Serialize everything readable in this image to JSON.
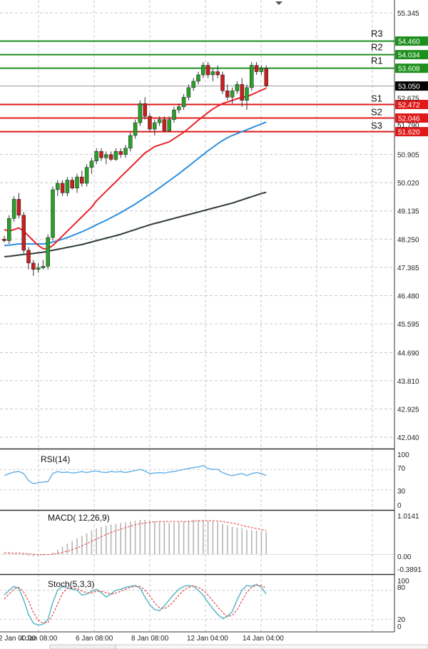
{
  "colors": {
    "resistance": "#1c8f1c",
    "support": "#e01a1a",
    "bull": "#2aa02a",
    "bear": "#c81e1e",
    "ma_fast": "#e8242a",
    "ma_mid": "#2b8fe0",
    "ma_slow": "#2f3b35",
    "rsi": "#6cb4e8",
    "macd_signal": "#e85a5a",
    "stoch_k": "#58b7c7",
    "stoch_d": "#e04848",
    "grid": "#c9c9c9",
    "price_tag": "#000000"
  },
  "chart_data": [
    {
      "type": "candlestick",
      "title": "",
      "yticks": [
        "55.345",
        "54.460",
        "54.034",
        "53.608",
        "53.050",
        "52.675",
        "52.472",
        "52.046",
        "51.790",
        "51.620",
        "50.905",
        "50.020",
        "49.135",
        "48.250",
        "47.365",
        "46.480",
        "45.595",
        "44.690",
        "43.810",
        "42.925",
        "42.040"
      ],
      "ylim": [
        41.6,
        55.6
      ],
      "levels": [
        {
          "name": "R3",
          "value": 54.46,
          "label": "54.460",
          "kind": "resistance"
        },
        {
          "name": "R2",
          "value": 54.034,
          "label": "54.034",
          "kind": "resistance"
        },
        {
          "name": "R1",
          "value": 53.608,
          "label": "53.608",
          "kind": "resistance"
        },
        {
          "name": "S1",
          "value": 52.472,
          "label": "52.472",
          "kind": "support"
        },
        {
          "name": "S2",
          "value": 52.046,
          "label": "52.046",
          "kind": "support"
        },
        {
          "name": "S3",
          "value": 51.62,
          "label": "51.620",
          "kind": "support"
        }
      ],
      "last_price": {
        "value": 53.05,
        "label": "53.050"
      },
      "candles": [
        [
          48.25,
          48.35,
          48.15,
          48.2
        ],
        [
          48.2,
          49.0,
          48.1,
          48.9
        ],
        [
          48.9,
          49.6,
          48.8,
          49.5
        ],
        [
          49.5,
          49.7,
          48.9,
          49.0
        ],
        [
          49.0,
          49.1,
          47.8,
          47.9
        ],
        [
          47.9,
          48.0,
          47.3,
          47.5
        ],
        [
          47.5,
          47.6,
          47.1,
          47.3
        ],
        [
          47.3,
          47.5,
          47.2,
          47.35
        ],
        [
          47.35,
          47.6,
          47.3,
          47.4
        ],
        [
          47.4,
          48.4,
          47.3,
          48.3
        ],
        [
          48.3,
          49.9,
          48.2,
          49.8
        ],
        [
          49.8,
          50.1,
          49.6,
          50.0
        ],
        [
          50.0,
          50.1,
          49.6,
          49.7
        ],
        [
          49.7,
          50.2,
          49.6,
          50.1
        ],
        [
          50.1,
          50.2,
          49.8,
          49.85
        ],
        [
          49.85,
          50.3,
          49.7,
          50.2
        ],
        [
          50.2,
          50.4,
          49.9,
          50.0
        ],
        [
          50.0,
          50.6,
          49.9,
          50.5
        ],
        [
          50.5,
          50.8,
          50.3,
          50.7
        ],
        [
          50.7,
          51.1,
          50.6,
          51.0
        ],
        [
          51.0,
          51.1,
          50.7,
          50.8
        ],
        [
          50.8,
          51.0,
          50.6,
          50.9
        ],
        [
          50.9,
          51.0,
          50.7,
          50.75
        ],
        [
          50.75,
          51.1,
          50.7,
          51.0
        ],
        [
          51.0,
          51.1,
          50.8,
          50.9
        ],
        [
          50.9,
          51.2,
          50.8,
          51.1
        ],
        [
          51.1,
          51.6,
          51.0,
          51.5
        ],
        [
          51.5,
          52.0,
          51.4,
          51.9
        ],
        [
          51.9,
          52.6,
          51.8,
          52.5
        ],
        [
          52.5,
          52.7,
          52.0,
          52.1
        ],
        [
          52.1,
          52.2,
          51.6,
          51.7
        ],
        [
          51.7,
          52.0,
          51.5,
          51.9
        ],
        [
          51.9,
          52.1,
          51.8,
          52.0
        ],
        [
          52.0,
          52.1,
          51.6,
          51.65
        ],
        [
          51.65,
          52.1,
          51.6,
          52.0
        ],
        [
          52.0,
          52.4,
          51.9,
          52.3
        ],
        [
          52.3,
          52.5,
          52.2,
          52.4
        ],
        [
          52.4,
          52.8,
          52.3,
          52.7
        ],
        [
          52.7,
          53.1,
          52.6,
          53.0
        ],
        [
          53.0,
          53.3,
          52.9,
          53.2
        ],
        [
          53.2,
          53.5,
          53.1,
          53.4
        ],
        [
          53.4,
          53.8,
          53.3,
          53.7
        ],
        [
          53.7,
          53.8,
          53.3,
          53.4
        ],
        [
          53.4,
          53.6,
          53.2,
          53.5
        ],
        [
          53.5,
          53.7,
          53.3,
          53.4
        ],
        [
          53.4,
          53.5,
          52.8,
          52.9
        ],
        [
          52.9,
          53.1,
          52.6,
          52.7
        ],
        [
          52.7,
          53.0,
          52.5,
          52.9
        ],
        [
          52.9,
          53.2,
          52.8,
          53.1
        ],
        [
          53.1,
          53.3,
          52.4,
          52.6
        ],
        [
          52.6,
          53.1,
          52.3,
          53.0
        ],
        [
          53.0,
          53.8,
          52.9,
          53.7
        ],
        [
          53.7,
          53.8,
          53.4,
          53.5
        ],
        [
          53.5,
          53.7,
          53.4,
          53.6
        ],
        [
          53.6,
          53.7,
          53.0,
          53.05
        ]
      ],
      "ma_fast": [
        48.55,
        48.5,
        48.55,
        48.6,
        48.5,
        48.35,
        48.2,
        48.05,
        47.95,
        47.95,
        48.05,
        48.2,
        48.35,
        48.5,
        48.65,
        48.8,
        48.95,
        49.1,
        49.25,
        49.45,
        49.6,
        49.75,
        49.9,
        50.05,
        50.2,
        50.35,
        50.5,
        50.65,
        50.8,
        50.95,
        51.05,
        51.15,
        51.2,
        51.25,
        51.3,
        51.4,
        51.5,
        51.6,
        51.72,
        51.85,
        51.98,
        52.1,
        52.22,
        52.33,
        52.42,
        52.5,
        52.55,
        52.6,
        52.65,
        52.7,
        52.72,
        52.78,
        52.85,
        52.92,
        52.98
      ],
      "ma_mid": [
        48.05,
        48.06,
        48.08,
        48.1,
        48.1,
        48.1,
        48.1,
        48.1,
        48.1,
        48.12,
        48.16,
        48.2,
        48.25,
        48.3,
        48.36,
        48.42,
        48.48,
        48.55,
        48.62,
        48.7,
        48.77,
        48.84,
        48.92,
        49.0,
        49.08,
        49.17,
        49.26,
        49.35,
        49.45,
        49.55,
        49.65,
        49.75,
        49.86,
        49.97,
        50.08,
        50.19,
        50.3,
        50.42,
        50.54,
        50.66,
        50.78,
        50.9,
        51.02,
        51.13,
        51.24,
        51.34,
        51.43,
        51.5,
        51.56,
        51.62,
        51.68,
        51.74,
        51.8,
        51.86,
        51.92
      ],
      "ma_slow": [
        47.7,
        47.71,
        47.73,
        47.75,
        47.77,
        47.78,
        47.8,
        47.82,
        47.84,
        47.87,
        47.9,
        47.93,
        47.96,
        47.99,
        48.02,
        48.05,
        48.08,
        48.12,
        48.16,
        48.2,
        48.24,
        48.28,
        48.32,
        48.36,
        48.4,
        48.45,
        48.5,
        48.55,
        48.6,
        48.65,
        48.7,
        48.74,
        48.78,
        48.82,
        48.86,
        48.9,
        48.94,
        48.98,
        49.02,
        49.06,
        49.1,
        49.14,
        49.18,
        49.22,
        49.26,
        49.3,
        49.34,
        49.38,
        49.43,
        49.48,
        49.53,
        49.58,
        49.63,
        49.68,
        49.72
      ]
    },
    {
      "type": "line",
      "title": "RSI(14)",
      "yticks": [
        "100",
        "70",
        "30",
        "0"
      ],
      "ylim": [
        0,
        100
      ],
      "series": [
        {
          "values": [
            58,
            62,
            65,
            66,
            62,
            48,
            42,
            44,
            45,
            46,
            62,
            66,
            64,
            65,
            63,
            64,
            66,
            64,
            66,
            67,
            65,
            64,
            66,
            65,
            66,
            64,
            66,
            68,
            70,
            67,
            62,
            63,
            64,
            63,
            65,
            66,
            68,
            70,
            72,
            74,
            75,
            78,
            72,
            70,
            70,
            64,
            60,
            58,
            60,
            62,
            58,
            62,
            64,
            62,
            58
          ]
        }
      ]
    },
    {
      "type": "bar",
      "title": "MACD( 12,26,9)",
      "yticks": [
        "1.0141",
        "0.00",
        "-0.3891"
      ],
      "ylim": [
        -0.3891,
        1.0141
      ],
      "histogram": [
        0.02,
        0.02,
        0.01,
        0.0,
        -0.02,
        -0.04,
        -0.05,
        -0.04,
        -0.03,
        -0.01,
        0.05,
        0.12,
        0.2,
        0.28,
        0.35,
        0.42,
        0.48,
        0.55,
        0.62,
        0.68,
        0.72,
        0.75,
        0.78,
        0.8,
        0.82,
        0.84,
        0.86,
        0.88,
        0.9,
        0.9,
        0.88,
        0.86,
        0.85,
        0.84,
        0.83,
        0.83,
        0.84,
        0.86,
        0.88,
        0.9,
        0.9,
        0.9,
        0.88,
        0.86,
        0.84,
        0.8,
        0.76,
        0.72,
        0.7,
        0.68,
        0.64,
        0.63,
        0.62,
        0.6,
        0.58
      ],
      "signal": [
        0.04,
        0.04,
        0.03,
        0.03,
        0.02,
        0.01,
        0.0,
        -0.01,
        -0.01,
        -0.01,
        0.0,
        0.02,
        0.05,
        0.08,
        0.12,
        0.17,
        0.22,
        0.28,
        0.34,
        0.4,
        0.46,
        0.52,
        0.57,
        0.62,
        0.66,
        0.7,
        0.74,
        0.77,
        0.8,
        0.82,
        0.84,
        0.85,
        0.86,
        0.86,
        0.86,
        0.86,
        0.86,
        0.86,
        0.86,
        0.87,
        0.88,
        0.88,
        0.88,
        0.88,
        0.87,
        0.86,
        0.84,
        0.82,
        0.79,
        0.76,
        0.73,
        0.7,
        0.68,
        0.65,
        0.62
      ]
    },
    {
      "type": "line",
      "title": "Stoch(5,3,3)",
      "yticks": [
        "100",
        "80",
        "20",
        "0"
      ],
      "ylim": [
        0,
        100
      ],
      "series": [
        {
          "values": [
            70,
            80,
            88,
            84,
            60,
            30,
            12,
            8,
            10,
            20,
            55,
            80,
            88,
            85,
            82,
            80,
            70,
            72,
            78,
            82,
            75,
            66,
            72,
            80,
            82,
            86,
            88,
            90,
            84,
            66,
            50,
            40,
            38,
            48,
            60,
            72,
            82,
            88,
            90,
            88,
            80,
            70,
            55,
            42,
            30,
            22,
            26,
            36,
            60,
            80,
            90,
            88,
            92,
            86,
            72
          ]
        },
        {
          "values": [
            62,
            72,
            82,
            86,
            76,
            58,
            34,
            18,
            12,
            14,
            30,
            52,
            74,
            84,
            85,
            83,
            78,
            75,
            74,
            78,
            78,
            75,
            72,
            74,
            78,
            82,
            86,
            88,
            88,
            80,
            68,
            54,
            44,
            42,
            48,
            58,
            70,
            80,
            86,
            89,
            86,
            80,
            70,
            58,
            46,
            34,
            26,
            28,
            40,
            58,
            76,
            86,
            90,
            90,
            84
          ]
        }
      ]
    }
  ],
  "xaxis": {
    "ticks": [
      "2 Jan 00:00",
      "4 Jan 08:00",
      "6 Jan 08:00",
      "8 Jan 08:00",
      "12 Jan 04:00",
      "14 Jan 04:00"
    ]
  }
}
